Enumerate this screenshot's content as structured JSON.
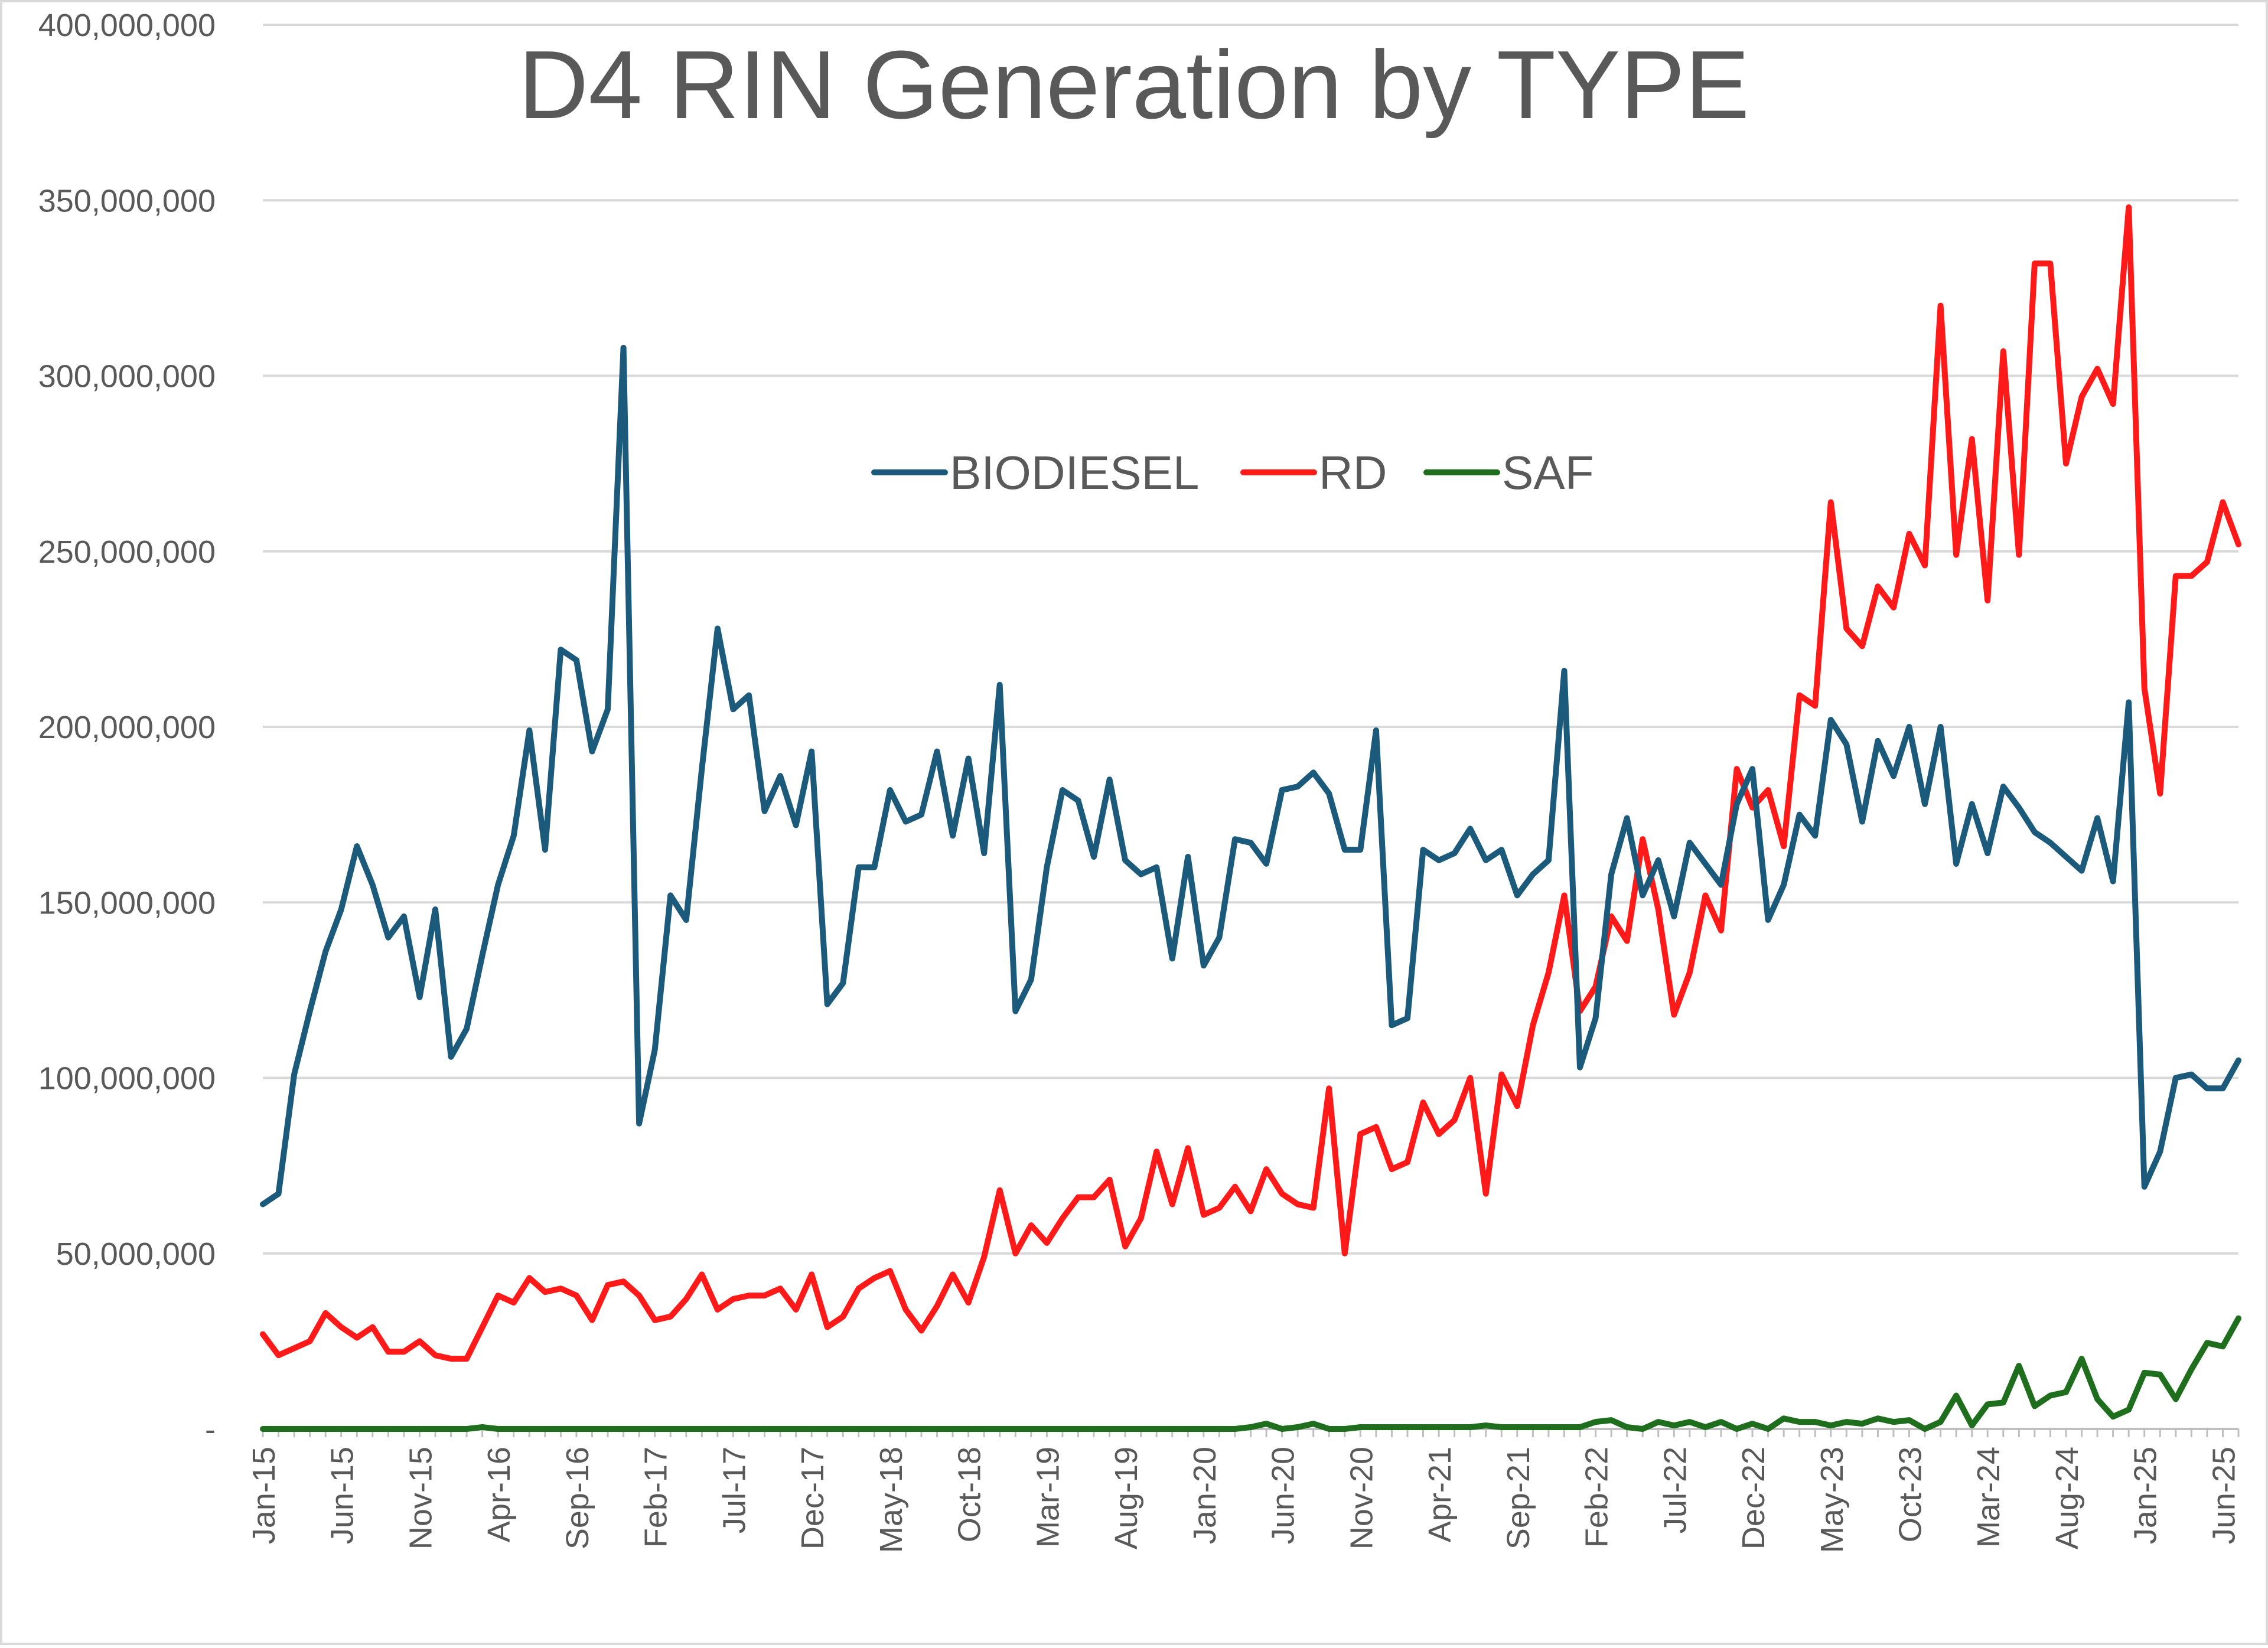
{
  "chart_data": {
    "type": "line",
    "title": "D4 RIN Generation by TYPE",
    "xlabel": "",
    "ylabel": "",
    "ylim": [
      0,
      400000000
    ],
    "y_ticks": [
      0,
      50000000,
      100000000,
      150000000,
      200000000,
      250000000,
      300000000,
      350000000,
      400000000
    ],
    "y_tick_labels": [
      "-",
      "50,000,000",
      "100,000,000",
      "150,000,000",
      "200,000,000",
      "250,000,000",
      "300,000,000",
      "350,000,000",
      "400,000,000"
    ],
    "x_start": "Jan-15",
    "x_tick_labels": [
      "Jan-15",
      "Jun-15",
      "Nov-15",
      "Apr-16",
      "Sep-16",
      "Feb-17",
      "Jul-17",
      "Dec-17",
      "May-18",
      "Oct-18",
      "Mar-19",
      "Aug-19",
      "Jan-20",
      "Jun-20",
      "Nov-20",
      "Apr-21",
      "Sep-21",
      "Feb-22",
      "Jul-22",
      "Dec-22",
      "May-23",
      "Oct-23",
      "Mar-24",
      "Aug-24",
      "Jan-25",
      "Jun-25"
    ],
    "grid": true,
    "legend_position": "top-center",
    "series": [
      {
        "name": "BIODIESEL",
        "color": "#1b5a7a",
        "values": [
          64000000,
          67000000,
          101000000,
          119000000,
          136000000,
          148000000,
          166000000,
          155000000,
          140000000,
          146000000,
          123000000,
          148000000,
          106000000,
          114000000,
          135000000,
          155000000,
          169000000,
          199000000,
          165000000,
          222000000,
          219000000,
          193000000,
          205000000,
          308000000,
          87000000,
          108000000,
          152000000,
          145000000,
          188000000,
          228000000,
          205000000,
          209000000,
          176000000,
          186000000,
          172000000,
          193000000,
          121000000,
          127000000,
          160000000,
          160000000,
          182000000,
          173000000,
          175000000,
          193000000,
          169000000,
          191000000,
          164000000,
          212000000,
          119000000,
          128000000,
          160000000,
          182000000,
          179000000,
          163000000,
          185000000,
          162000000,
          158000000,
          160000000,
          134000000,
          163000000,
          132000000,
          140000000,
          168000000,
          167000000,
          161000000,
          182000000,
          183000000,
          187000000,
          181000000,
          165000000,
          165000000,
          199000000,
          115000000,
          117000000,
          165000000,
          162000000,
          164000000,
          171000000,
          162000000,
          165000000,
          152000000,
          158000000,
          162000000,
          216000000,
          103000000,
          117000000,
          158000000,
          174000000,
          152000000,
          162000000,
          146000000,
          167000000,
          161000000,
          155000000,
          178000000,
          188000000,
          145000000,
          155000000,
          175000000,
          169000000,
          202000000,
          195000000,
          173000000,
          196000000,
          186000000,
          200000000,
          178000000,
          200000000,
          161000000,
          178000000,
          164000000,
          183000000,
          177000000,
          170000000,
          167000000,
          163000000,
          159000000,
          174000000,
          156000000,
          207000000,
          69000000,
          79000000,
          100000000,
          101000000,
          97000000,
          97000000,
          105000000
        ]
      },
      {
        "name": "RD",
        "color": "#ff1a1a",
        "values": [
          27000000,
          21000000,
          23000000,
          25000000,
          33000000,
          29000000,
          26000000,
          29000000,
          22000000,
          22000000,
          25000000,
          21000000,
          20000000,
          20000000,
          29000000,
          38000000,
          36000000,
          43000000,
          39000000,
          40000000,
          38000000,
          31000000,
          41000000,
          42000000,
          38000000,
          31000000,
          32000000,
          37000000,
          44000000,
          34000000,
          37000000,
          38000000,
          38000000,
          40000000,
          34000000,
          44000000,
          29000000,
          32000000,
          40000000,
          43000000,
          45000000,
          34000000,
          28000000,
          35000000,
          44000000,
          36000000,
          49000000,
          68000000,
          50000000,
          58000000,
          53000000,
          60000000,
          66000000,
          66000000,
          71000000,
          52000000,
          60000000,
          79000000,
          64000000,
          80000000,
          61000000,
          63000000,
          69000000,
          62000000,
          74000000,
          67000000,
          64000000,
          63000000,
          97000000,
          50000000,
          84000000,
          86000000,
          74000000,
          76000000,
          93000000,
          84000000,
          88000000,
          100000000,
          67000000,
          101000000,
          92000000,
          115000000,
          130000000,
          152000000,
          119000000,
          126000000,
          146000000,
          139000000,
          168000000,
          148000000,
          118000000,
          130000000,
          152000000,
          142000000,
          188000000,
          177000000,
          182000000,
          166000000,
          209000000,
          206000000,
          264000000,
          228000000,
          223000000,
          240000000,
          234000000,
          255000000,
          246000000,
          320000000,
          249000000,
          282000000,
          236000000,
          307000000,
          249000000,
          332000000,
          332000000,
          275000000,
          294000000,
          302000000,
          292000000,
          348000000,
          211000000,
          181000000,
          243000000,
          243000000,
          247000000,
          264000000,
          252000000
        ]
      },
      {
        "name": "SAF",
        "color": "#1e6e1e",
        "values": [
          0,
          0,
          0,
          0,
          0,
          0,
          0,
          0,
          0,
          0,
          0,
          0,
          0,
          0,
          500000,
          0,
          0,
          0,
          0,
          0,
          0,
          0,
          0,
          0,
          0,
          0,
          0,
          0,
          0,
          0,
          0,
          0,
          0,
          0,
          0,
          0,
          0,
          0,
          0,
          0,
          0,
          0,
          0,
          0,
          0,
          0,
          0,
          0,
          0,
          0,
          0,
          0,
          0,
          0,
          0,
          0,
          0,
          0,
          0,
          0,
          0,
          0,
          0,
          500000,
          1500000,
          0,
          500000,
          1500000,
          0,
          0,
          500000,
          500000,
          500000,
          500000,
          500000,
          500000,
          500000,
          500000,
          1000000,
          500000,
          500000,
          500000,
          500000,
          500000,
          500000,
          2000000,
          2500000,
          500000,
          0,
          2000000,
          1000000,
          2000000,
          500000,
          2000000,
          0,
          1500000,
          0,
          3000000,
          2000000,
          2000000,
          1000000,
          2000000,
          1500000,
          3000000,
          2000000,
          2500000,
          0,
          2000000,
          9500000,
          1000000,
          7000000,
          7500000,
          18000000,
          6500000,
          9500000,
          10500000,
          20000000,
          8500000,
          3500000,
          5500000,
          16000000,
          15500000,
          8500000,
          17000000,
          24500000,
          23500000,
          31500000
        ]
      }
    ]
  }
}
